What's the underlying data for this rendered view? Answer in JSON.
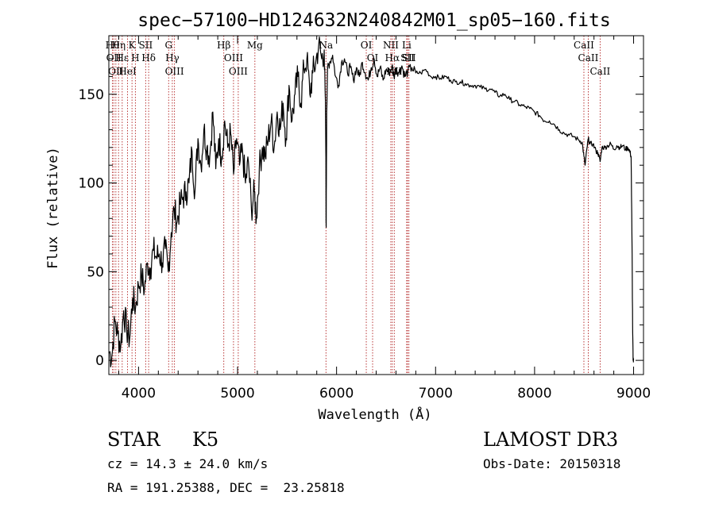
{
  "chart_data": {
    "type": "line",
    "title": "spec−57100−HD124632N240842M01_sp05−160.fits",
    "xlabel": "Wavelength (Å)",
    "ylabel": "Flux (relative)",
    "xlim": [
      3700,
      9100
    ],
    "ylim": [
      -8,
      183
    ],
    "x_ticks": [
      4000,
      5000,
      6000,
      7000,
      8000,
      9000
    ],
    "y_ticks": [
      0,
      50,
      100,
      150
    ],
    "grid": false,
    "series": [
      {
        "x": [
          3700,
          3730,
          3760,
          3790,
          3820,
          3850,
          3880,
          3910,
          3940,
          3970,
          4000,
          4030,
          4060,
          4090,
          4120,
          4150,
          4180,
          4210,
          4240,
          4270,
          4300,
          4330,
          4360,
          4390,
          4420,
          4450,
          4480,
          4510,
          4540,
          4570,
          4600,
          4630,
          4660,
          4690,
          4720,
          4750,
          4780,
          4810,
          4840,
          4870,
          4900,
          4930,
          4960,
          4990,
          5020,
          5050,
          5080,
          5110,
          5140,
          5170,
          5190,
          5220,
          5250,
          5280,
          5310,
          5340,
          5370,
          5400,
          5430,
          5460,
          5490,
          5520,
          5550,
          5580,
          5610,
          5640,
          5670,
          5700,
          5730,
          5760,
          5790,
          5820,
          5850,
          5875,
          5890,
          5895,
          5900,
          5910,
          5930,
          5960,
          5990,
          6020,
          6050,
          6080,
          6110,
          6140,
          6170,
          6200,
          6230,
          6260,
          6290,
          6320,
          6350,
          6380,
          6410,
          6440,
          6470,
          6500,
          6530,
          6560,
          6580,
          6600,
          6630,
          6660,
          6690,
          6720,
          6760,
          6800,
          6850,
          6900,
          6950,
          7000,
          7050,
          7100,
          7150,
          7200,
          7250,
          7300,
          7350,
          7400,
          7450,
          7500,
          7550,
          7600,
          7650,
          7700,
          7750,
          7800,
          7850,
          7900,
          7950,
          8000,
          8050,
          8100,
          8150,
          8200,
          8250,
          8300,
          8350,
          8400,
          8450,
          8480,
          8498,
          8510,
          8530,
          8542,
          8560,
          8590,
          8620,
          8640,
          8662,
          8680,
          8710,
          8740,
          8770,
          8800,
          8830,
          8860,
          8890,
          8920,
          8940,
          8960,
          8975,
          8985,
          8990,
          8995,
          9000
        ],
        "y": [
          5,
          2,
          22,
          15,
          8,
          28,
          18,
          12,
          35,
          30,
          42,
          48,
          40,
          55,
          52,
          62,
          58,
          60,
          55,
          63,
          50,
          72,
          85,
          78,
          88,
          92,
          95,
          100,
          118,
          95,
          125,
          110,
          130,
          120,
          115,
          140,
          108,
          125,
          115,
          135,
          120,
          128,
          105,
          125,
          110,
          118,
          100,
          112,
          85,
          95,
          80,
          108,
          120,
          115,
          125,
          135,
          120,
          140,
          130,
          145,
          125,
          155,
          135,
          150,
          160,
          145,
          165,
          170,
          150,
          162,
          168,
          178,
          170,
          175,
          130,
          75,
          140,
          165,
          168,
          172,
          160,
          155,
          168,
          170,
          162,
          165,
          158,
          165,
          160,
          168,
          162,
          158,
          165,
          170,
          160,
          165,
          158,
          164,
          162,
          166,
          160,
          165,
          162,
          166,
          160,
          163,
          165,
          162,
          162,
          164,
          160,
          160,
          159,
          160,
          158,
          157,
          157,
          156,
          155,
          155,
          154,
          153,
          153,
          151,
          149,
          150,
          147,
          146,
          144,
          143,
          142,
          140,
          138,
          135,
          135,
          133,
          130,
          128,
          127,
          126,
          124,
          123,
          115,
          110,
          120,
          125,
          122,
          122,
          118,
          117,
          112,
          120,
          120,
          121,
          122,
          119,
          121,
          120,
          121,
          119,
          120,
          118,
          115,
          60,
          20,
          0,
          0
        ]
      }
    ],
    "lines": [
      {
        "x": 3736,
        "label": "Hθ"
      },
      {
        "x": 3750,
        "label": "OII"
      },
      {
        "x": 3771,
        "label": "OII"
      },
      {
        "x": 3798,
        "label": "Hη"
      },
      {
        "x": 3835,
        "label": "Hε"
      },
      {
        "x": 3889,
        "label": "HeI"
      },
      {
        "x": 3934,
        "label": "K"
      },
      {
        "x": 3968,
        "label": "H"
      },
      {
        "x": 4072,
        "label": "SII"
      },
      {
        "x": 4102,
        "label": "Hδ"
      },
      {
        "x": 4304,
        "label": "G"
      },
      {
        "x": 4341,
        "label": "Hγ"
      },
      {
        "x": 4363,
        "label": "OIII"
      },
      {
        "x": 4861,
        "label": "Hβ"
      },
      {
        "x": 4959,
        "label": "OIII"
      },
      {
        "x": 5007,
        "label": "OIII"
      },
      {
        "x": 5175,
        "label": "Mg"
      },
      {
        "x": 5893,
        "label": "Na"
      },
      {
        "x": 6300,
        "label": "OI"
      },
      {
        "x": 6364,
        "label": "OI"
      },
      {
        "x": 6548,
        "label": "NII"
      },
      {
        "x": 6563,
        "label": "Hα"
      },
      {
        "x": 6583,
        "label": "NII"
      },
      {
        "x": 6708,
        "label": "Li"
      },
      {
        "x": 6717,
        "label": "SII"
      },
      {
        "x": 6731,
        "label": "SII"
      },
      {
        "x": 8498,
        "label": "CaII"
      },
      {
        "x": 8542,
        "label": "CaII"
      },
      {
        "x": 8662,
        "label": "CaII"
      }
    ]
  },
  "info": {
    "class": "STAR",
    "subclass": "K5",
    "survey": "LAMOST DR3",
    "cz": "cz = 14.3 ± 24.0 km/s",
    "obs_date": "Obs-Date: 20150318",
    "coords": "RA = 191.25388, DEC =  23.25818"
  }
}
